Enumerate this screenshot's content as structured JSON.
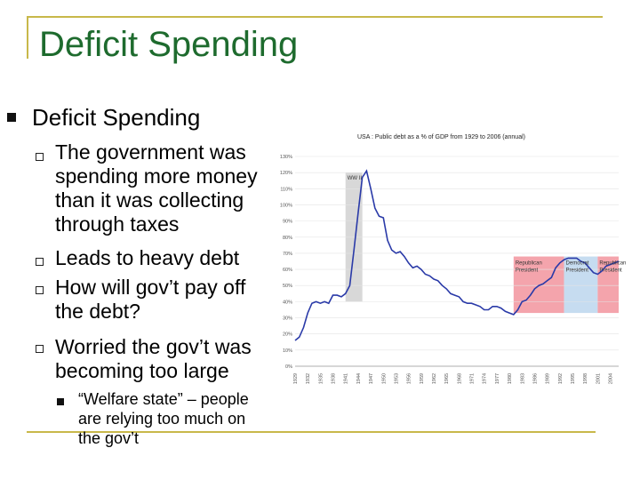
{
  "slide": {
    "title": "Deficit Spending",
    "bullet": "Deficit Spending",
    "subbullets": [
      "The government was spending more money than it was collecting through taxes",
      "Leads to heavy debt",
      "How will gov’t pay off the debt?",
      "Worried the gov’t was becoming too large"
    ],
    "subsubbullet": "“Welfare state” – people are relying too much on the gov’t",
    "accent_color": "#1e6b2e",
    "frame_color": "#c8b84a"
  },
  "chart_data": {
    "type": "line",
    "title": "USA : Public debt as a % of GDP from 1929 to 2006 (annual)",
    "ylim": [
      0,
      130
    ],
    "y_ticks": [
      "0%",
      "10%",
      "20%",
      "30%",
      "40%",
      "50%",
      "60%",
      "70%",
      "80%",
      "90%",
      "100%",
      "110%",
      "120%",
      "130%"
    ],
    "x_ticks": [
      "1929",
      "1932",
      "1935",
      "1938",
      "1941",
      "1944",
      "1947",
      "1950",
      "1953",
      "1956",
      "1959",
      "1962",
      "1965",
      "1968",
      "1971",
      "1974",
      "1977",
      "1980",
      "1983",
      "1986",
      "1989",
      "1992",
      "1995",
      "1998",
      "2001",
      "2004"
    ],
    "series": [
      {
        "x": [
          1929,
          1930,
          1931,
          1932,
          1933,
          1934,
          1935,
          1936,
          1937,
          1938,
          1939,
          1940,
          1941,
          1942,
          1943,
          1944,
          1945,
          1946,
          1947,
          1948,
          1949,
          1950,
          1951,
          1952,
          1953,
          1954,
          1955,
          1956,
          1957,
          1958,
          1959,
          1960,
          1961,
          1962,
          1963,
          1964,
          1965,
          1966,
          1967,
          1968,
          1969,
          1970,
          1971,
          1972,
          1973,
          1974,
          1975,
          1976,
          1977,
          1978,
          1979,
          1980,
          1981,
          1982,
          1983,
          1984,
          1985,
          1986,
          1987,
          1988,
          1989,
          1990,
          1991,
          1992,
          1993,
          1994,
          1995,
          1996,
          1997,
          1998,
          1999,
          2000,
          2001,
          2002,
          2003,
          2004,
          2005,
          2006
        ],
        "y": [
          16,
          18,
          24,
          33,
          39,
          40,
          39,
          40,
          39,
          44,
          44,
          43,
          45,
          50,
          72,
          95,
          117,
          121,
          110,
          98,
          93,
          92,
          78,
          72,
          70,
          71,
          68,
          64,
          61,
          62,
          60,
          57,
          56,
          54,
          53,
          50,
          48,
          45,
          44,
          43,
          40,
          39,
          39,
          38,
          37,
          35,
          35,
          37,
          37,
          36,
          34,
          33,
          32,
          35,
          40,
          41,
          44,
          48,
          50,
          51,
          53,
          55,
          61,
          64,
          66,
          67,
          67,
          67,
          65,
          64,
          61,
          58,
          57,
          59,
          62,
          63,
          64,
          65
        ]
      }
    ],
    "shaded_regions": [
      {
        "from": 1941,
        "to": 1945,
        "label": "WW II"
      },
      {
        "from": 1981,
        "to": 1993,
        "label": "Republican President"
      },
      {
        "from": 1993,
        "to": 2001,
        "label": "Democrat President"
      },
      {
        "from": 2001,
        "to": 2006,
        "label": "Republican President"
      }
    ],
    "colors": {
      "line": "#2a3aa8",
      "wwii": "#d8d8d8",
      "republican": "#f4a4ac",
      "democrat": "#c6dcf0"
    }
  }
}
